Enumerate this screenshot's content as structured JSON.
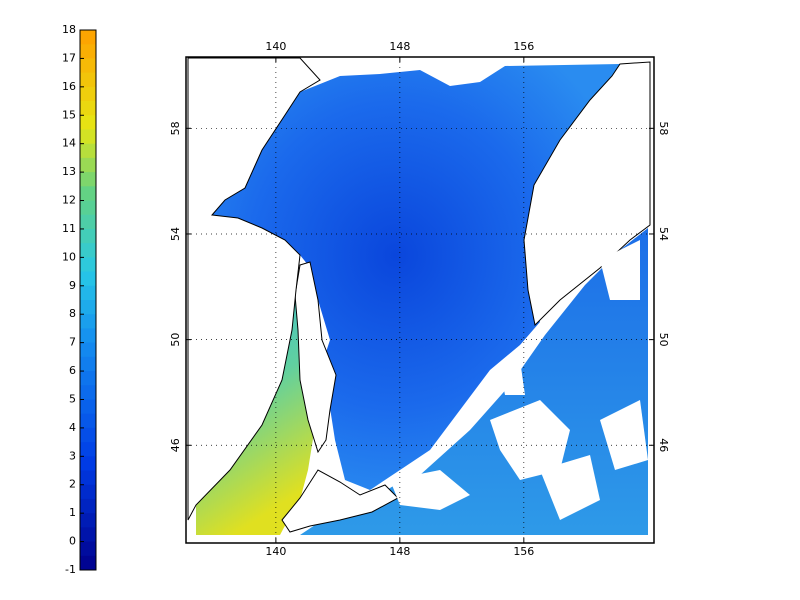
{
  "colorbar": {
    "lim": [
      -1,
      18
    ],
    "ticks": [
      -1,
      0,
      1,
      2,
      3,
      4,
      5,
      6,
      7,
      8,
      9,
      10,
      11,
      12,
      13,
      14,
      15,
      16,
      17,
      18
    ]
  },
  "map": {
    "xlim": [
      134.2,
      164.4
    ],
    "ylim": [
      42.3,
      60.7
    ],
    "xticks": [
      140,
      148,
      156
    ],
    "yticks": [
      46,
      50,
      54,
      58
    ],
    "grid": true
  }
}
